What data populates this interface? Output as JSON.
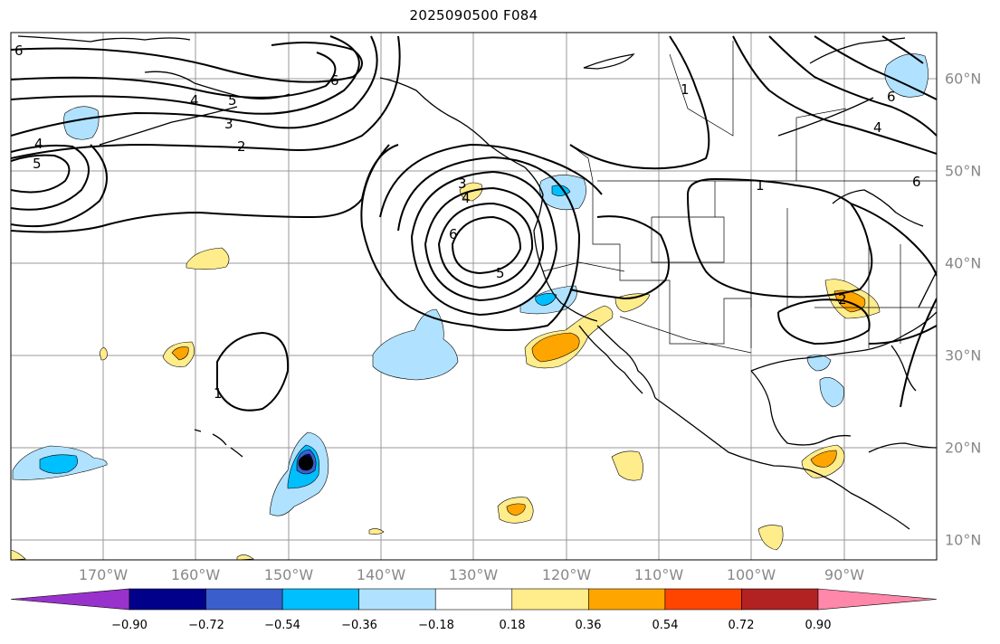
{
  "title": "2025090500 F084",
  "lon_labels": [
    "170°W",
    "160°W",
    "150°W",
    "140°W",
    "130°W",
    "120°W",
    "110°W",
    "100°W",
    "90°W"
  ],
  "lat_labels": [
    "60°N",
    "50°N",
    "40°N",
    "30°N",
    "20°N",
    "10°N"
  ],
  "colorbar": {
    "ticks": [
      "−0.90",
      "−0.72",
      "−0.54",
      "−0.36",
      "−0.18",
      "0.18",
      "0.36",
      "0.54",
      "0.72",
      "0.90"
    ],
    "colors": [
      "#9932cc",
      "#00008b",
      "#3a5fcd",
      "#00bfff",
      "#b0e2ff",
      "#ffffff",
      "#ffec8b",
      "#ffa500",
      "#ff4500",
      "#b22222",
      "#ff88aa"
    ]
  },
  "contour_labels": [
    "6",
    "4",
    "5",
    "3",
    "2",
    "4",
    "5",
    "6",
    "3",
    "4",
    "6",
    "5",
    "1",
    "1",
    "2",
    "6",
    "4",
    "1",
    "6"
  ],
  "colors": {
    "land_line": "#000000",
    "grid": "#888888",
    "contour": "#000000"
  }
}
